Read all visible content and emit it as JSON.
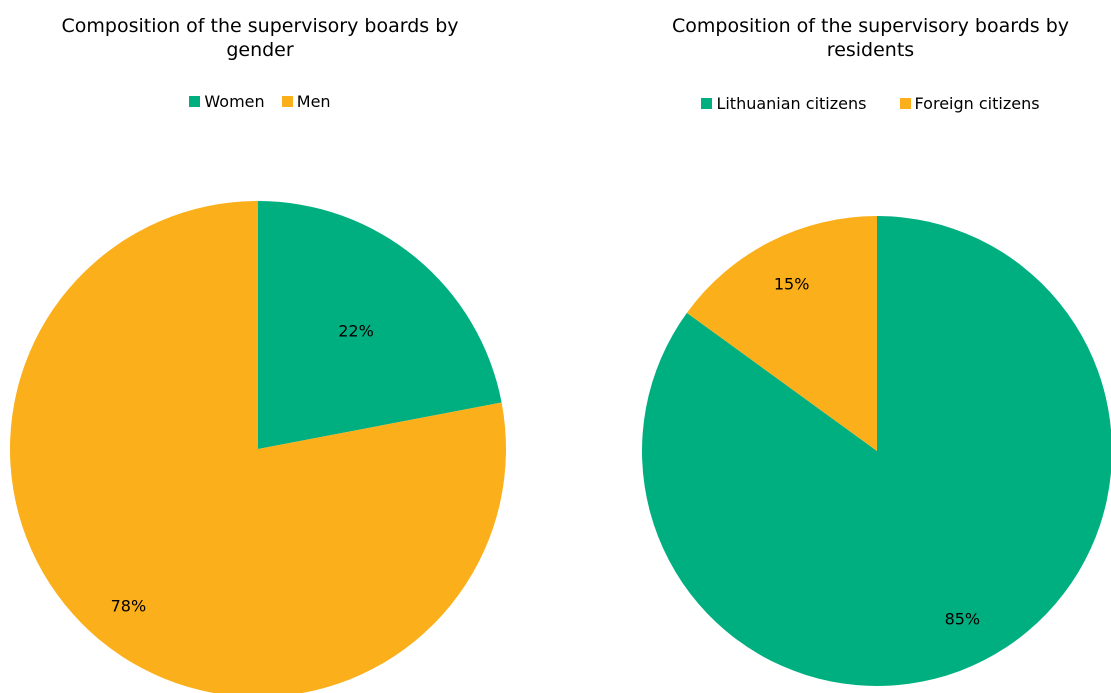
{
  "colors": {
    "green": "#00af80",
    "orange": "#fbaf1b"
  },
  "chart_data": [
    {
      "type": "pie",
      "title": "Composition of the supervisory boards by gender",
      "title_lines": [
        "Composition of the supervisory boards by",
        "gender"
      ],
      "legend_position": "top",
      "slices": [
        {
          "label": "Women",
          "value": 22,
          "display": "22%",
          "color": "#00af80"
        },
        {
          "label": "Men",
          "value": 78,
          "display": "78%",
          "color": "#fbaf1b"
        }
      ]
    },
    {
      "type": "pie",
      "title": "Composition of the supervisory boards by residents",
      "title_lines": [
        "Composition of the supervisory boards by",
        "residents"
      ],
      "legend_position": "top",
      "slices": [
        {
          "label": "Lithuanian citizens",
          "value": 85,
          "display": "85%",
          "color": "#00af80"
        },
        {
          "label": "Foreign citizens",
          "value": 15,
          "display": "15%",
          "color": "#fbaf1b"
        }
      ]
    }
  ]
}
